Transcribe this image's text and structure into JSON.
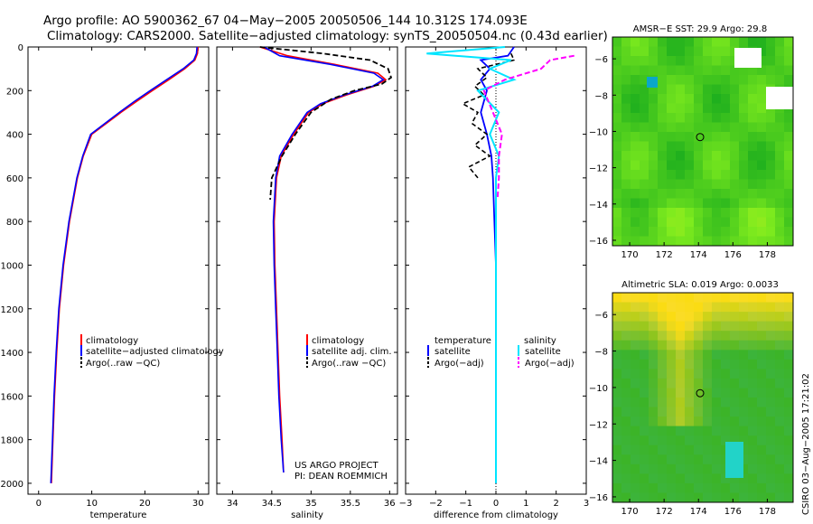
{
  "header": {
    "line1": "Argo profile: AO 5900362_67 04−May−2005 20050506_144 10.312S 174.093E",
    "line2": "Climatology: CARS2000. Satellite−adjusted climatology: synTS_20050504.nc (0.43d earlier)"
  },
  "credit": {
    "project": "US ARGO PROJECT",
    "pi": "PI: DEAN ROEMMICH"
  },
  "side_stamp": "CSIRO 03−Aug−2005 17:21:02",
  "colors": {
    "climatology": "#ff0000",
    "satellite": "#0000ff",
    "argo": "#000000",
    "sat_salinity": "#00e5ff",
    "argo_salinity": "#ff00ff"
  },
  "chart_data": [
    {
      "type": "line",
      "id": "temperature",
      "xlabel": "temperature",
      "ylabel": "",
      "xlim": [
        -2,
        32
      ],
      "ylim": [
        0,
        2050
      ],
      "xticks": [
        "0",
        "10",
        "20",
        "30"
      ],
      "yticks": [
        "0",
        "200",
        "400",
        "600",
        "800",
        "1000",
        "1200",
        "1400",
        "1600",
        "1800",
        "2000"
      ],
      "legend": [
        "climatology",
        "satellite−adjusted climatology",
        "Argo(..raw −QC)"
      ],
      "series": [
        {
          "name": "climatology",
          "depth": [
            0,
            30,
            60,
            100,
            150,
            200,
            250,
            300,
            400,
            500,
            600,
            800,
            1000,
            1200,
            1400,
            1600,
            1800,
            2000
          ],
          "values": [
            30.0,
            29.9,
            29.4,
            27.5,
            24.5,
            21.4,
            18.4,
            15.5,
            10.0,
            8.4,
            7.3,
            5.8,
            4.7,
            3.9,
            3.4,
            3.0,
            2.7,
            2.4
          ]
        },
        {
          "name": "satellite",
          "depth": [
            0,
            30,
            60,
            100,
            150,
            200,
            250,
            300,
            400,
            500,
            600,
            800,
            1000,
            1200,
            1400,
            1600,
            1800,
            2000
          ],
          "values": [
            29.8,
            29.7,
            29.2,
            27.2,
            24.1,
            21.0,
            18.0,
            15.2,
            9.8,
            8.3,
            7.2,
            5.7,
            4.6,
            3.8,
            3.3,
            2.9,
            2.6,
            2.3
          ]
        }
      ]
    },
    {
      "type": "line",
      "id": "salinity",
      "xlabel": "salinity",
      "ylabel": "",
      "xlim": [
        33.8,
        36.1
      ],
      "ylim": [
        0,
        2050
      ],
      "xticks": [
        "34",
        "34.5",
        "35",
        "35.5",
        "36"
      ],
      "legend": [
        "climatology",
        "satellite adj. clim.",
        "Argo(..raw −QC)"
      ],
      "series": [
        {
          "name": "climatology",
          "depth": [
            0,
            40,
            80,
            120,
            150,
            180,
            220,
            260,
            300,
            400,
            500,
            600,
            800,
            1000,
            1200,
            1400,
            1600,
            1800,
            1950
          ],
          "values": [
            34.35,
            34.7,
            35.3,
            35.85,
            35.95,
            35.8,
            35.45,
            35.15,
            34.97,
            34.78,
            34.62,
            34.56,
            34.53,
            34.54,
            34.56,
            34.58,
            34.6,
            34.63,
            34.65
          ]
        },
        {
          "name": "satellite",
          "depth": [
            0,
            40,
            80,
            120,
            150,
            180,
            220,
            260,
            300,
            400,
            500,
            600,
            800,
            1000,
            1200,
            1400,
            1600,
            1800,
            1950
          ],
          "values": [
            34.4,
            34.6,
            35.25,
            35.8,
            35.92,
            35.78,
            35.42,
            35.12,
            34.95,
            34.76,
            34.6,
            34.55,
            34.52,
            34.53,
            34.55,
            34.57,
            34.59,
            34.62,
            34.65
          ]
        },
        {
          "name": "argo",
          "depth": [
            0,
            30,
            60,
            100,
            140,
            170,
            200,
            240,
            300,
            400,
            500,
            600,
            700
          ],
          "values": [
            34.35,
            35.15,
            35.75,
            35.98,
            36.02,
            35.9,
            35.55,
            35.25,
            35.0,
            34.8,
            34.63,
            34.5,
            34.48
          ]
        }
      ]
    },
    {
      "type": "line",
      "id": "difference",
      "xlabel": "difference from climatology",
      "ylabel": "",
      "xlim": [
        -3,
        3
      ],
      "ylim": [
        0,
        2050
      ],
      "xticks": [
        "−3",
        "−2",
        "−1",
        "0",
        "1",
        "2",
        "3"
      ],
      "legend_temperature": {
        "title": "temperature",
        "items": [
          "satellite",
          "Argo(−adj)"
        ]
      },
      "legend_salinity": {
        "title": "salinity",
        "items": [
          "satellite",
          "Argo(−adj)"
        ]
      },
      "series": [
        {
          "name": "temperature satellite",
          "depth": [
            0,
            40,
            60,
            100,
            150,
            200,
            300,
            400,
            500,
            600,
            800,
            1000,
            1500,
            2000
          ],
          "values": [
            0.6,
            0.4,
            -0.5,
            -0.2,
            -0.5,
            -0.3,
            -0.5,
            -0.3,
            -0.15,
            -0.1,
            -0.05,
            0,
            0,
            0
          ]
        },
        {
          "name": "temperature argo",
          "depth": [
            30,
            60,
            100,
            140,
            180,
            220,
            260,
            300,
            350,
            400,
            450,
            500,
            550,
            600
          ],
          "values": [
            0.5,
            0.6,
            -0.6,
            -0.3,
            -0.7,
            -0.4,
            -1.1,
            -0.6,
            -0.8,
            -0.3,
            -0.7,
            -0.2,
            -0.9,
            -0.6
          ]
        },
        {
          "name": "salinity satellite",
          "depth": [
            0,
            30,
            60,
            100,
            150,
            200,
            300,
            400,
            500,
            600,
            800,
            1000,
            1500,
            2000
          ],
          "values": [
            0.3,
            -2.3,
            0.5,
            -0.2,
            0.6,
            -0.6,
            0.1,
            -0.2,
            0.1,
            0.0,
            0.0,
            0.0,
            0.0,
            0.0
          ]
        },
        {
          "name": "salinity argo",
          "depth": [
            40,
            60,
            100,
            150,
            200,
            300,
            400,
            500,
            600,
            700
          ],
          "values": [
            2.6,
            1.8,
            1.5,
            0.3,
            -0.4,
            -0.1,
            0.2,
            0.1,
            0.1,
            0.05
          ]
        }
      ]
    },
    {
      "type": "heatmap",
      "id": "sst-map",
      "title": "AMSR−E SST: 29.9 Argo: 29.8",
      "xlim": [
        169,
        179.5
      ],
      "ylim": [
        -16.3,
        -4.8
      ],
      "xticks": [
        "170",
        "172",
        "174",
        "176",
        "178"
      ],
      "yticks": [
        "−6",
        "−8",
        "−10",
        "−12",
        "−14",
        "−16"
      ],
      "marker": {
        "lon": 174.093,
        "lat": -10.312
      }
    },
    {
      "type": "heatmap",
      "id": "sla-map",
      "title": "Altimetric SLA: 0.019 Argo: 0.0033",
      "xlim": [
        169,
        179.5
      ],
      "ylim": [
        -16.3,
        -4.8
      ],
      "xticks": [
        "170",
        "172",
        "174",
        "176",
        "178"
      ],
      "yticks": [
        "−6",
        "−8",
        "−10",
        "−12",
        "−14",
        "−16"
      ],
      "marker": {
        "lon": 174.093,
        "lat": -10.312
      }
    }
  ]
}
